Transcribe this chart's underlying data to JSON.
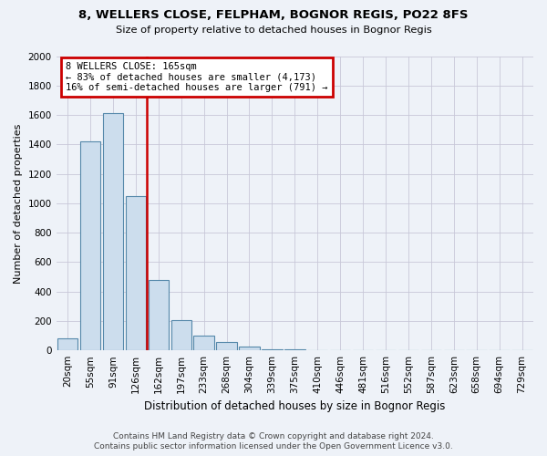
{
  "title": "8, WELLERS CLOSE, FELPHAM, BOGNOR REGIS, PO22 8FS",
  "subtitle": "Size of property relative to detached houses in Bognor Regis",
  "xlabel": "Distribution of detached houses by size in Bognor Regis",
  "ylabel": "Number of detached properties",
  "categories": [
    "20sqm",
    "55sqm",
    "91sqm",
    "126sqm",
    "162sqm",
    "197sqm",
    "233sqm",
    "268sqm",
    "304sqm",
    "339sqm",
    "375sqm",
    "410sqm",
    "446sqm",
    "481sqm",
    "516sqm",
    "552sqm",
    "587sqm",
    "623sqm",
    "658sqm",
    "694sqm",
    "729sqm"
  ],
  "values": [
    80,
    1420,
    1610,
    1050,
    480,
    205,
    100,
    55,
    25,
    10,
    5,
    2,
    0,
    0,
    0,
    0,
    0,
    0,
    0,
    0,
    0
  ],
  "property_label": "8 WELLERS CLOSE: 165sqm",
  "annotation_line1": "← 83% of detached houses are smaller (4,173)",
  "annotation_line2": "16% of semi-detached houses are larger (791) →",
  "bar_color": "#ccdded",
  "bar_edge_color": "#5588aa",
  "vline_color": "#cc0000",
  "vline_x_idx": 3.5,
  "annotation_box_edgecolor": "#cc0000",
  "background_color": "#eef2f8",
  "grid_color": "#c8c8d8",
  "ylim_max": 2000,
  "yticks": [
    0,
    200,
    400,
    600,
    800,
    1000,
    1200,
    1400,
    1600,
    1800,
    2000
  ],
  "footnote1": "Contains HM Land Registry data © Crown copyright and database right 2024.",
  "footnote2": "Contains public sector information licensed under the Open Government Licence v3.0."
}
